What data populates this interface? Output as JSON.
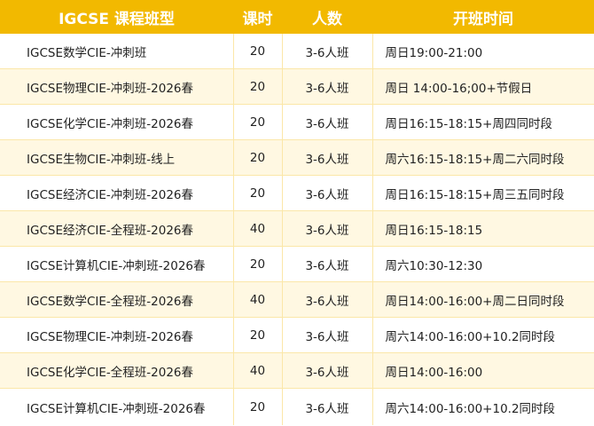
{
  "colors": {
    "header_bg": "#f2b900",
    "header_text": "#ffffff",
    "alt_row": "#fff8e2",
    "border": "#fbe7a8"
  },
  "headers": [
    "IGCSE 课程班型",
    "课时",
    "人数",
    "开班时间"
  ],
  "rows": [
    [
      "IGCSE数学CIE-冲刺班",
      "20",
      "3-6人班",
      "周日19:00-21:00"
    ],
    [
      "IGCSE物理CIE-冲刺班-2026春",
      "20",
      "3-6人班",
      "周日 14:00-16;00+节假日"
    ],
    [
      "IGCSE化学CIE-冲刺班-2026春",
      "20",
      "3-6人班",
      "周日16:15-18:15+周四同时段"
    ],
    [
      "IGCSE生物CIE-冲刺班-线上",
      "20",
      "3-6人班",
      "周六16:15-18:15+周二六同时段"
    ],
    [
      "IGCSE经济CIE-冲刺班-2026春",
      "20",
      "3-6人班",
      "周日16:15-18:15+周三五同时段"
    ],
    [
      "IGCSE经济CIE-全程班-2026春",
      "40",
      "3-6人班",
      "周日16:15-18:15"
    ],
    [
      "IGCSE计算机CIE-冲刺班-2026春",
      "20",
      "3-6人班",
      "周六10:30-12:30"
    ],
    [
      "IGCSE数学CIE-全程班-2026春",
      "40",
      "3-6人班",
      "周日14:00-16:00+周二日同时段"
    ],
    [
      "IGCSE物理CIE-冲刺班-2026春",
      "20",
      "3-6人班",
      "周六14:00-16:00+10.2同时段"
    ],
    [
      "IGCSE化学CIE-全程班-2026春",
      "40",
      "3-6人班",
      "周日14:00-16:00"
    ],
    [
      "IGCSE计算机CIE-冲刺班-2026春",
      "20",
      "3-6人班",
      "周六14:00-16:00+10.2同时段"
    ]
  ]
}
